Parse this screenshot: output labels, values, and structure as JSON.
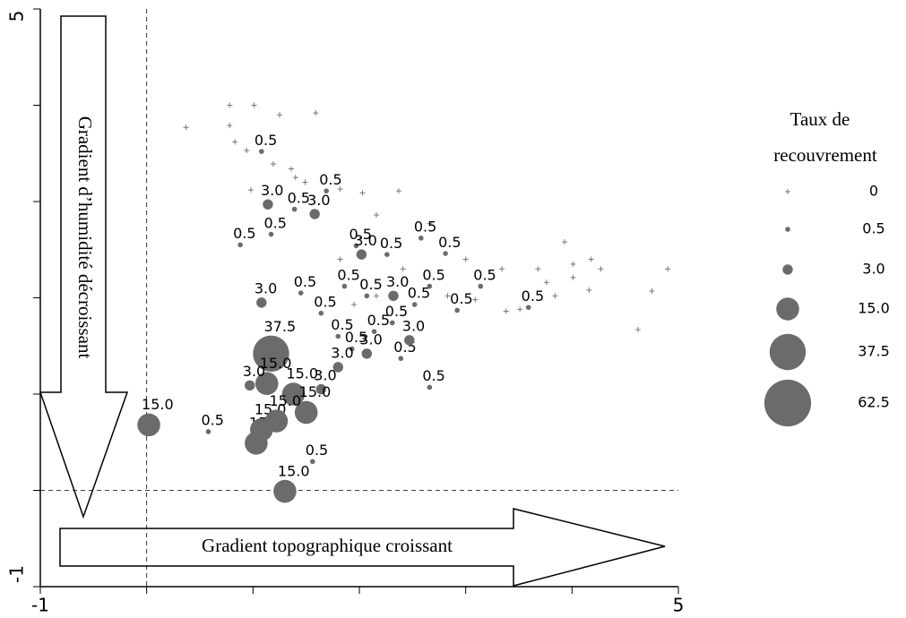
{
  "chart_data": {
    "type": "scatter",
    "xlim": [
      -1,
      5
    ],
    "ylim": [
      -1,
      5
    ],
    "xticks": [
      -1,
      5
    ],
    "yticks": [
      -1,
      5
    ],
    "minor_xticks": [
      0,
      1,
      2,
      3,
      4
    ],
    "minor_yticks": [
      0,
      1,
      2,
      3,
      4
    ],
    "xline": 0,
    "yline": 0,
    "annotations": [
      "Gradient d’humidité décroissant",
      "Gradient topographique croissant"
    ],
    "series": [
      {
        "marker": "cross",
        "color": "#777777",
        "x": [
          0.37,
          0.78,
          1.01,
          1.25,
          1.59,
          0.83,
          0.94,
          1.19,
          1.36,
          1.49,
          0.98,
          1.82,
          2.03,
          2.37,
          2.16,
          2.66,
          3.0,
          3.34,
          3.68,
          3.93,
          4.18,
          4.27,
          4.01,
          4.9,
          4.75,
          4.62,
          4.16,
          3.84,
          3.51,
          3.38,
          3.09,
          2.83,
          2.41,
          2.16,
          1.82,
          1.95,
          0.78,
          1.4,
          3.76,
          4.01
        ],
        "y": [
          3.77,
          4.0,
          4.0,
          3.9,
          3.92,
          3.62,
          3.53,
          3.39,
          3.34,
          3.2,
          3.12,
          3.13,
          3.09,
          3.11,
          2.86,
          2.77,
          2.4,
          2.3,
          2.3,
          2.58,
          2.4,
          2.3,
          2.21,
          2.3,
          2.07,
          1.67,
          2.08,
          2.02,
          1.88,
          1.86,
          1.98,
          2.02,
          2.3,
          2.02,
          2.4,
          1.93,
          3.79,
          3.25,
          2.16,
          2.35
        ]
      },
      {
        "marker": "circle",
        "color": "#6b6b6b",
        "x": [
          1.08,
          1.14,
          1.39,
          1.58,
          1.69,
          0.88,
          1.17,
          1.97,
          2.02,
          2.26,
          2.58,
          2.81,
          3.14,
          3.59,
          1.08,
          1.45,
          1.64,
          1.17,
          1.13,
          0.97,
          0.02,
          0.58,
          1.56,
          1.3,
          1.03,
          1.08,
          2.66,
          2.92,
          1.93,
          2.14,
          2.39,
          1.8,
          1.64,
          1.38,
          1.5,
          1.22,
          2.47,
          2.31,
          2.52,
          2.66,
          1.86,
          2.07,
          1.8,
          2.07,
          2.32
        ],
        "y": [
          3.52,
          2.97,
          2.92,
          2.87,
          3.11,
          2.55,
          2.66,
          2.54,
          2.45,
          2.45,
          2.62,
          2.46,
          2.12,
          1.9,
          1.95,
          2.05,
          1.84,
          1.42,
          1.11,
          1.09,
          0.68,
          0.61,
          0.3,
          -0.01,
          0.49,
          0.63,
          1.07,
          1.87,
          1.47,
          1.65,
          1.37,
          1.28,
          1.05,
          1.0,
          0.81,
          0.72,
          1.56,
          1.74,
          1.93,
          2.12,
          2.12,
          2.02,
          1.6,
          1.42,
          2.02
        ],
        "sizes": [
          0.5,
          3,
          0.5,
          3,
          0.5,
          0.5,
          0.5,
          0.5,
          3,
          0.5,
          0.5,
          0.5,
          0.5,
          0.5,
          3,
          0.5,
          0.5,
          37.5,
          15,
          3,
          15,
          0.5,
          0.5,
          15,
          15,
          15,
          0.5,
          0.5,
          0.5,
          0.5,
          0.5,
          3,
          3,
          15,
          15,
          15,
          3,
          0.5,
          0.5,
          0.5,
          0.5,
          0.5,
          0.5,
          3,
          3
        ],
        "value_labels": [
          "0.5",
          "3.0",
          "0.5",
          "3.0",
          "0.5",
          "0.5",
          "0.5",
          "0.5",
          "3.0",
          "0.5",
          "0.5",
          "0.5",
          "0.5",
          "0.5",
          "3.0",
          "0.5",
          "0.5",
          "37.5",
          "15.0",
          "3.0",
          "15.0",
          "0.5",
          "0.5",
          "15.0",
          "15.0",
          "15.0",
          "0.5",
          "0.5",
          "0.5",
          "0.5",
          "0.5",
          "3.0",
          "3.0",
          "15.0",
          "15.0",
          "15.0",
          "3.0",
          "0.5",
          "0.5",
          "0.5",
          "0.5",
          "0.5",
          "0.5",
          "3.0",
          "3.0"
        ]
      }
    ],
    "legend": {
      "title_lines": [
        "Taux de",
        "recouvrement"
      ],
      "labels": [
        "0",
        "0.5",
        "3.0",
        "15.0",
        "37.5",
        "62.5"
      ],
      "sizes": [
        0,
        0.5,
        3,
        15,
        37.5,
        62.5
      ]
    }
  }
}
